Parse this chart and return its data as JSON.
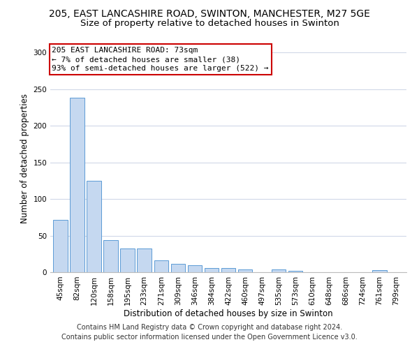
{
  "title_line1": "205, EAST LANCASHIRE ROAD, SWINTON, MANCHESTER, M27 5GE",
  "title_line2": "Size of property relative to detached houses in Swinton",
  "xlabel": "Distribution of detached houses by size in Swinton",
  "ylabel": "Number of detached properties",
  "bar_color": "#c5d8f0",
  "bar_edge_color": "#5b9bd5",
  "categories": [
    "45sqm",
    "82sqm",
    "120sqm",
    "158sqm",
    "195sqm",
    "233sqm",
    "271sqm",
    "309sqm",
    "346sqm",
    "384sqm",
    "422sqm",
    "460sqm",
    "497sqm",
    "535sqm",
    "573sqm",
    "610sqm",
    "648sqm",
    "686sqm",
    "724sqm",
    "761sqm",
    "799sqm"
  ],
  "values": [
    72,
    238,
    125,
    44,
    32,
    32,
    16,
    11,
    10,
    6,
    6,
    4,
    0,
    4,
    2,
    0,
    0,
    0,
    0,
    3,
    0
  ],
  "ylim": [
    0,
    310
  ],
  "yticks": [
    0,
    50,
    100,
    150,
    200,
    250,
    300
  ],
  "annotation_text_line1": "205 EAST LANCASHIRE ROAD: 73sqm",
  "annotation_text_line2": "← 7% of detached houses are smaller (38)",
  "annotation_text_line3": "93% of semi-detached houses are larger (522) →",
  "footer_line1": "Contains HM Land Registry data © Crown copyright and database right 2024.",
  "footer_line2": "Contains public sector information licensed under the Open Government Licence v3.0.",
  "bg_color": "#ffffff",
  "grid_color": "#d0d8e8",
  "annotation_box_color": "#ffffff",
  "annotation_box_edge": "#cc0000",
  "title_fontsize": 10,
  "subtitle_fontsize": 9.5,
  "axis_label_fontsize": 8.5,
  "tick_fontsize": 7.5,
  "annotation_fontsize": 8,
  "footer_fontsize": 7
}
